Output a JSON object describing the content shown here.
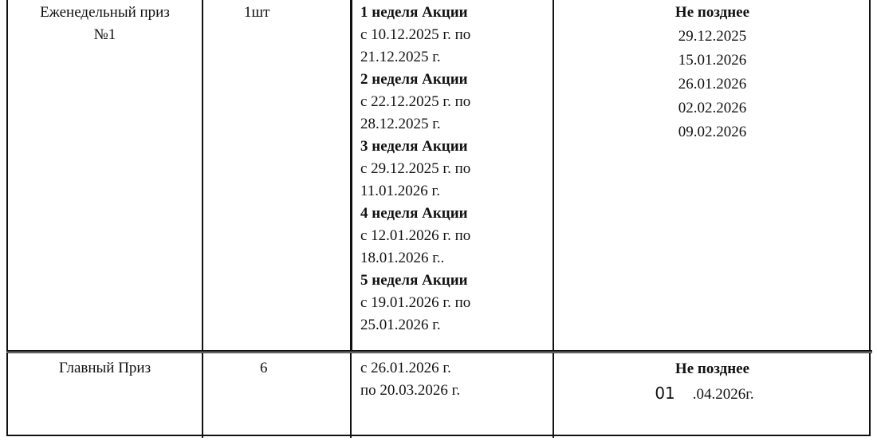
{
  "rows": [
    {
      "prize": [
        "Еженедельный приз",
        "№1"
      ],
      "quantity": "1шт",
      "weeks": [
        {
          "title": "1 неделя Акции",
          "line1": "с 10.12.2025 г. по",
          "line2": "21.12.2025 г."
        },
        {
          "title": "2 неделя Акции",
          "line1": "с 22.12.2025 г. по",
          "line2": "28.12.2025 г."
        },
        {
          "title": "3 неделя Акции",
          "line1": "с 29.12.2025 г. по",
          "line2": "11.01.2026 г."
        },
        {
          "title": "4 неделя Акции",
          "line1": "с 12.01.2026 г. по",
          "line2": "18.01.2026 г.."
        },
        {
          "title": "5 неделя Акции",
          "line1": "с 19.01.2026 г. по",
          "line2": "25.01.2026 г."
        }
      ],
      "deadline_title": "Не позднее",
      "deadlines": [
        "29.12.2025",
        "15.01.2026",
        "26.01.2026",
        "02.02.2026",
        "09.02.2026"
      ]
    },
    {
      "prize": [
        "Главный Приз"
      ],
      "quantity": "6",
      "period": [
        "с 26.01.2026 г.",
        "по 20.03.2026 г."
      ],
      "deadline_title": "Не позднее",
      "deadline_day": "01",
      "deadline_rest": ".04.2026г."
    }
  ]
}
